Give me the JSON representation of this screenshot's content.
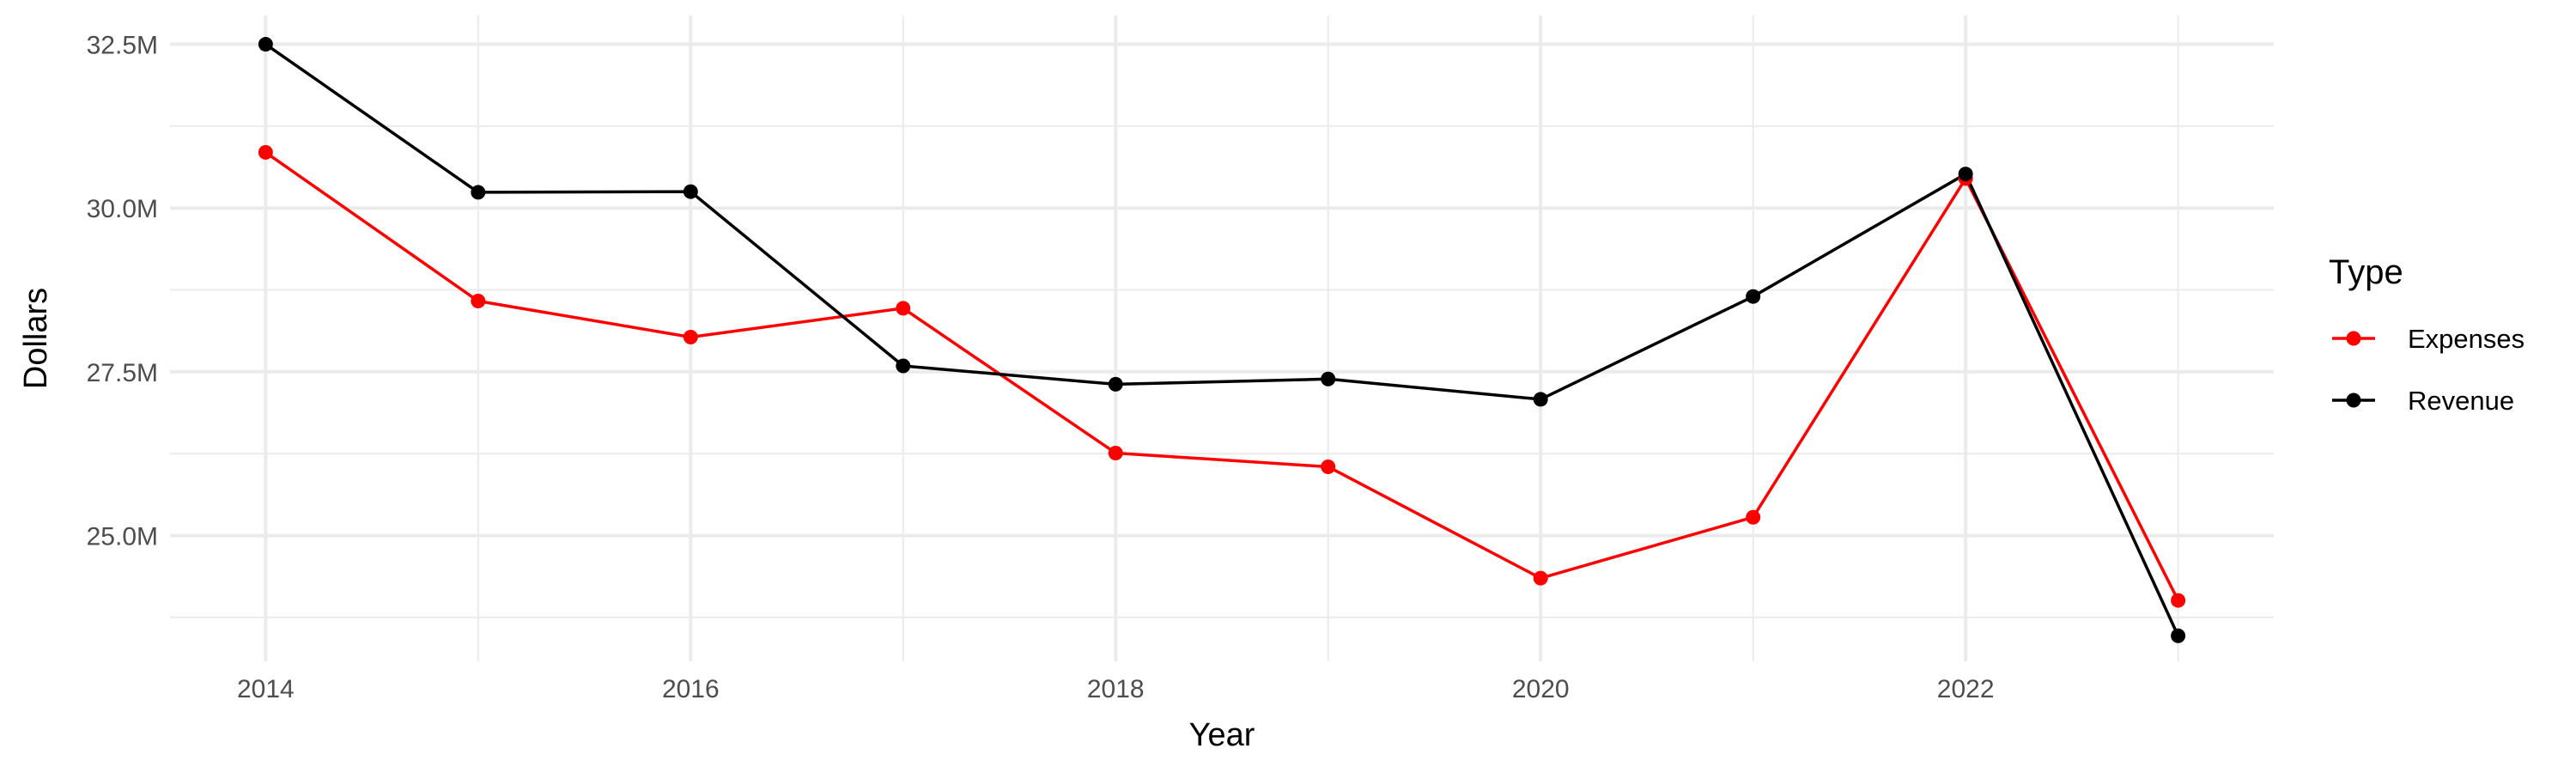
{
  "chart_data": {
    "type": "line",
    "title": "",
    "xlabel": "Year",
    "ylabel": "Dollars",
    "x": [
      2014,
      2015,
      2016,
      2017,
      2018,
      2019,
      2020,
      2021,
      2022,
      2023
    ],
    "xticks": [
      2014,
      2016,
      2018,
      2020,
      2022
    ],
    "xtick_labels": [
      "2014",
      "2016",
      "2018",
      "2020",
      "2022"
    ],
    "xlim": [
      2013.55,
      2023.45
    ],
    "yticks": [
      25000000,
      27500000,
      30000000,
      32500000
    ],
    "ytick_labels": [
      "25.0M",
      "27.5M",
      "30.0M",
      "32.5M"
    ],
    "ylim": [
      23080000,
      32940000
    ],
    "grid": true,
    "series": [
      {
        "name": "Expenses",
        "color": "#ff0000",
        "values": [
          30850000,
          28580000,
          28030000,
          28470000,
          26260000,
          26050000,
          24350000,
          25280000,
          30450000,
          24010000
        ]
      },
      {
        "name": "Revenue",
        "color": "#000000",
        "values": [
          32500000,
          30240000,
          30250000,
          27590000,
          27310000,
          27390000,
          27080000,
          28650000,
          30520000,
          23470000
        ]
      }
    ],
    "legend": {
      "title": "Type",
      "position": "right"
    }
  }
}
